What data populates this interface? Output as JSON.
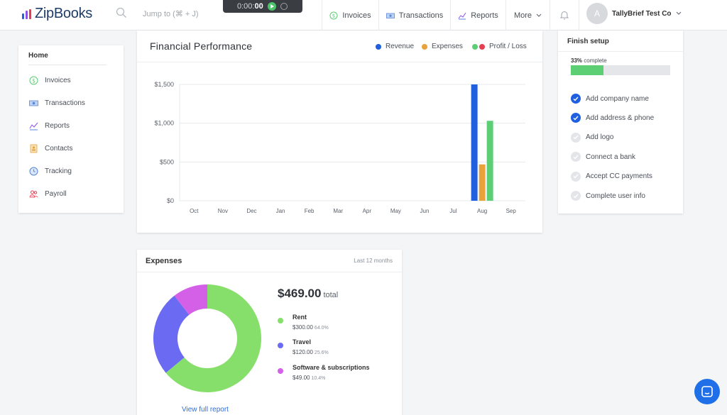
{
  "app": {
    "name": "ZipBooks"
  },
  "header": {
    "search_placeholder": "Jump to (⌘ + J)",
    "timer": {
      "time_light": "0:00:",
      "time_bold": "00"
    },
    "nav": [
      {
        "label": "Invoices",
        "icon": "dollar-circle-icon"
      },
      {
        "label": "Transactions",
        "icon": "money-icon"
      },
      {
        "label": "Reports",
        "icon": "chart-icon"
      },
      {
        "label": "More",
        "icon": "chevron-down-icon"
      }
    ],
    "avatar_initial": "A",
    "account_name": "TallyBrief Test Co"
  },
  "sidebar": {
    "home_label": "Home",
    "items": [
      {
        "label": "Invoices",
        "icon": "dollar-circle-icon"
      },
      {
        "label": "Transactions",
        "icon": "money-icon"
      },
      {
        "label": "Reports",
        "icon": "chart-icon"
      },
      {
        "label": "Contacts",
        "icon": "contacts-icon"
      },
      {
        "label": "Tracking",
        "icon": "clock-icon"
      },
      {
        "label": "Payroll",
        "icon": "people-icon"
      }
    ]
  },
  "financial": {
    "title": "Financial Performance",
    "legend": {
      "revenue": "Revenue",
      "expenses": "Expenses",
      "profit": "Profit / Loss"
    }
  },
  "chart_data": {
    "type": "bar",
    "categories": [
      "Oct",
      "Nov",
      "Dec",
      "Jan",
      "Feb",
      "Mar",
      "Apr",
      "May",
      "Jun",
      "Jul",
      "Aug",
      "Sep"
    ],
    "series": [
      {
        "name": "Revenue",
        "color": "#1f5fe0",
        "values": [
          0,
          0,
          0,
          0,
          0,
          0,
          0,
          0,
          0,
          0,
          1500,
          0
        ]
      },
      {
        "name": "Expenses",
        "color": "#e9a23b",
        "values": [
          0,
          0,
          0,
          0,
          0,
          0,
          0,
          0,
          0,
          0,
          469,
          0
        ]
      },
      {
        "name": "Profit / Loss",
        "color": "#5ccf75",
        "values": [
          0,
          0,
          0,
          0,
          0,
          0,
          0,
          0,
          0,
          0,
          1031,
          0
        ]
      }
    ],
    "yticks": [
      "$0",
      "$500",
      "$1,000",
      "$1,500"
    ],
    "ytick_values": [
      0,
      500,
      1000,
      1500
    ],
    "ylim": [
      0,
      1500
    ],
    "grid": true,
    "legend_position": "top-right"
  },
  "setup": {
    "title": "Finish setup",
    "percent_label": "33%",
    "complete_label": "complete",
    "progress": 0.33,
    "tasks": [
      {
        "label": "Add company name",
        "done": true
      },
      {
        "label": "Add address & phone",
        "done": true
      },
      {
        "label": "Add logo",
        "done": false
      },
      {
        "label": "Connect a bank",
        "done": false
      },
      {
        "label": "Accept CC payments",
        "done": false
      },
      {
        "label": "Complete user info",
        "done": false
      }
    ]
  },
  "expenses": {
    "title": "Expenses",
    "range": "Last 12 months",
    "total": "$469.00",
    "total_label": "total",
    "categories": [
      {
        "name": "Rent",
        "amount": "$300.00",
        "percent": "64.0%",
        "value": 300,
        "color": "#86df6a"
      },
      {
        "name": "Travel",
        "amount": "$120.00",
        "percent": "25.6%",
        "value": 120,
        "color": "#6a6af2"
      },
      {
        "name": "Software & subscriptions",
        "amount": "$49.00",
        "percent": "10.4%",
        "value": 49,
        "color": "#d560e8"
      }
    ],
    "view_report": "View full report"
  },
  "colors": {
    "accent": "#1f5fe0",
    "logo_bars": [
      "#1f5fe0",
      "#8c52e8",
      "#e63d52"
    ]
  }
}
